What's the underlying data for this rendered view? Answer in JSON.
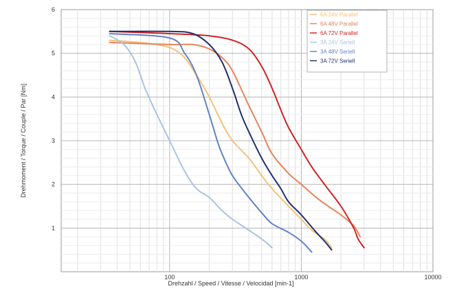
{
  "chart_data": {
    "type": "line",
    "xscale": "log",
    "xlim": [
      15,
      10000
    ],
    "ylim": [
      0,
      6
    ],
    "xlabel": "Drehzahl / Speed / Vitesse / Velocidad [min-1]",
    "ylabel": "Drehmoment / Torque / Couple / Par [Nm]",
    "x_ticks": [
      {
        "value": 100,
        "label": "100"
      },
      {
        "value": 1000,
        "label": "1000"
      },
      {
        "value": 10000,
        "label": "10000"
      }
    ],
    "y_ticks": [
      {
        "value": 1,
        "label": "1"
      },
      {
        "value": 2,
        "label": "2"
      },
      {
        "value": 3,
        "label": "3"
      },
      {
        "value": 4,
        "label": "4"
      },
      {
        "value": 5,
        "label": "5"
      },
      {
        "value": 6,
        "label": "6"
      }
    ],
    "grid": true,
    "legend_position": "top-right",
    "series": [
      {
        "name": "6A  24V  Parallel",
        "color": "#f5c078",
        "points": [
          [
            35,
            5.3
          ],
          [
            80,
            5.2
          ],
          [
            120,
            5.0
          ],
          [
            160,
            4.5
          ],
          [
            200,
            4.0
          ],
          [
            250,
            3.4
          ],
          [
            300,
            3.0
          ],
          [
            400,
            2.6
          ],
          [
            500,
            2.2
          ],
          [
            600,
            1.9
          ],
          [
            800,
            1.5
          ],
          [
            1000,
            1.2
          ],
          [
            1200,
            0.95
          ],
          [
            1500,
            0.75
          ],
          [
            1700,
            0.55
          ]
        ]
      },
      {
        "name": "6A  48V  Parallel",
        "color": "#e8825a",
        "points": [
          [
            35,
            5.25
          ],
          [
            100,
            5.2
          ],
          [
            150,
            5.2
          ],
          [
            200,
            5.1
          ],
          [
            250,
            4.9
          ],
          [
            300,
            4.6
          ],
          [
            400,
            3.8
          ],
          [
            500,
            3.2
          ],
          [
            600,
            2.7
          ],
          [
            800,
            2.25
          ],
          [
            1000,
            2.0
          ],
          [
            1300,
            1.7
          ],
          [
            1600,
            1.5
          ],
          [
            2000,
            1.3
          ],
          [
            2500,
            1.05
          ],
          [
            2800,
            0.8
          ]
        ]
      },
      {
        "name": "6A  72V  Parallel",
        "color": "#d42020",
        "points": [
          [
            35,
            5.5
          ],
          [
            100,
            5.45
          ],
          [
            200,
            5.4
          ],
          [
            300,
            5.3
          ],
          [
            400,
            5.1
          ],
          [
            500,
            4.7
          ],
          [
            600,
            4.2
          ],
          [
            700,
            3.7
          ],
          [
            800,
            3.3
          ],
          [
            1000,
            2.8
          ],
          [
            1200,
            2.4
          ],
          [
            1500,
            2.0
          ],
          [
            2000,
            1.5
          ],
          [
            2500,
            1.0
          ],
          [
            2700,
            0.75
          ],
          [
            3000,
            0.55
          ]
        ]
      },
      {
        "name": "3A  24V  Seriell",
        "color": "#a9c3e2",
        "points": [
          [
            35,
            5.4
          ],
          [
            45,
            5.2
          ],
          [
            55,
            4.8
          ],
          [
            65,
            4.2
          ],
          [
            80,
            3.6
          ],
          [
            100,
            3.0
          ],
          [
            130,
            2.3
          ],
          [
            160,
            1.9
          ],
          [
            200,
            1.7
          ],
          [
            250,
            1.4
          ],
          [
            300,
            1.2
          ],
          [
            400,
            0.95
          ],
          [
            500,
            0.75
          ],
          [
            600,
            0.55
          ]
        ]
      },
      {
        "name": "3A  48V  Seriell",
        "color": "#5f82c4",
        "points": [
          [
            35,
            5.45
          ],
          [
            100,
            5.35
          ],
          [
            130,
            5.0
          ],
          [
            160,
            4.5
          ],
          [
            200,
            3.6
          ],
          [
            230,
            3.0
          ],
          [
            250,
            2.7
          ],
          [
            300,
            2.2
          ],
          [
            400,
            1.7
          ],
          [
            500,
            1.35
          ],
          [
            600,
            1.1
          ],
          [
            800,
            0.9
          ],
          [
            1000,
            0.7
          ],
          [
            1200,
            0.45
          ]
        ]
      },
      {
        "name": "3A  72V  Seriell",
        "color": "#1f2f6e",
        "points": [
          [
            35,
            5.5
          ],
          [
            100,
            5.5
          ],
          [
            150,
            5.45
          ],
          [
            200,
            5.2
          ],
          [
            250,
            4.8
          ],
          [
            300,
            4.2
          ],
          [
            350,
            3.6
          ],
          [
            400,
            3.2
          ],
          [
            500,
            2.6
          ],
          [
            600,
            2.2
          ],
          [
            700,
            1.9
          ],
          [
            800,
            1.6
          ],
          [
            1000,
            1.3
          ],
          [
            1300,
            0.9
          ],
          [
            1500,
            0.7
          ],
          [
            1700,
            0.5
          ]
        ]
      }
    ]
  }
}
